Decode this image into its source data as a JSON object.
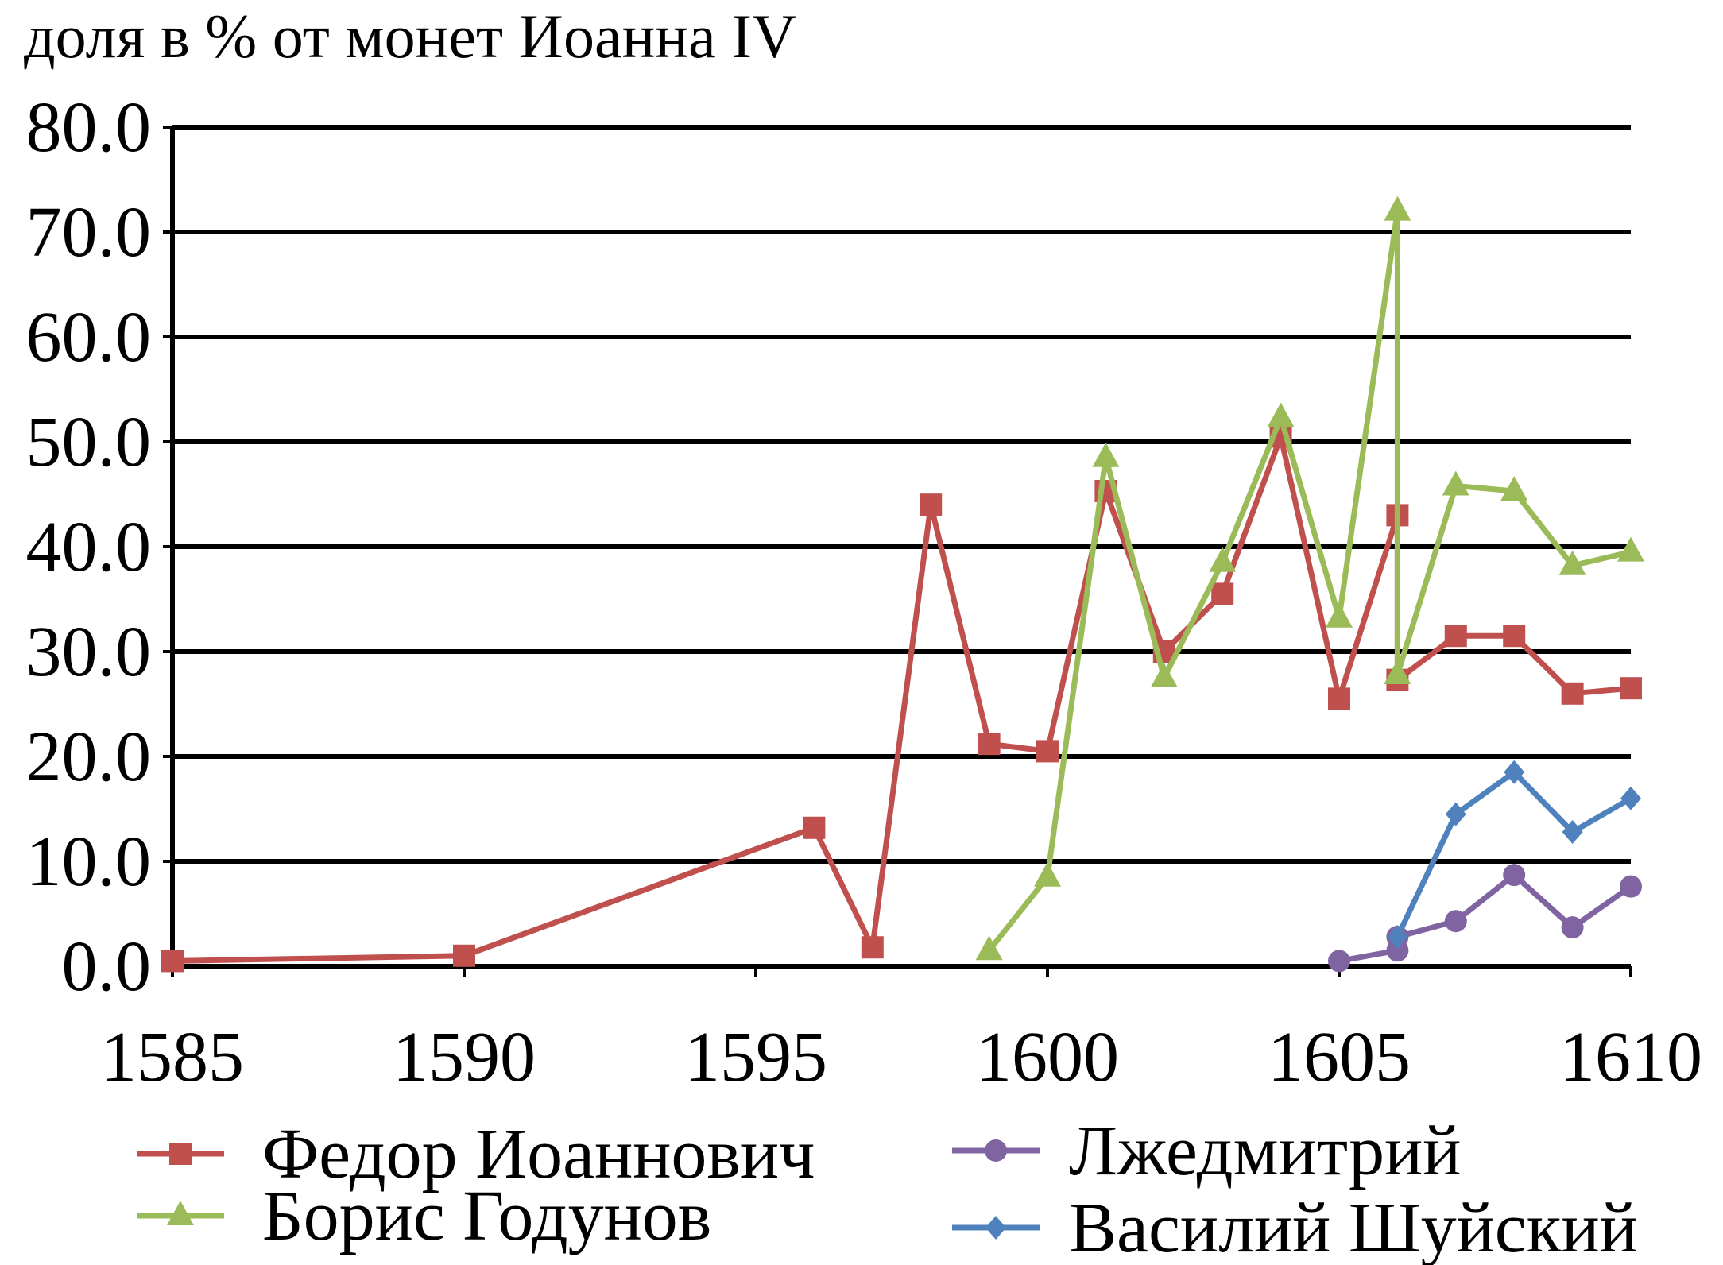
{
  "chart_data": {
    "type": "line",
    "title": "",
    "ylabel": "доля в % от монет Иоанна IV",
    "xlabel": "",
    "xlim": [
      1585,
      1610
    ],
    "ylim": [
      0,
      80
    ],
    "x_ticks": [
      "1585",
      "1590",
      "1595",
      "1600",
      "1605",
      "1610"
    ],
    "y_ticks": [
      "0.0",
      "10.0",
      "20.0",
      "30.0",
      "40.0",
      "50.0",
      "60.0",
      "70.0",
      "80.0"
    ],
    "grid": "horizontal",
    "legend_position": "bottom",
    "series": [
      {
        "name": "Федор Иоаннович",
        "color": "#c0504d",
        "marker": "square",
        "points": [
          [
            1585,
            0.5
          ],
          [
            1590,
            1.0
          ],
          [
            1596,
            13.2
          ],
          [
            1597,
            1.8
          ],
          [
            1598,
            44.0
          ],
          [
            1599,
            21.2
          ],
          [
            1600,
            20.5
          ],
          [
            1601,
            45.3
          ],
          [
            1602,
            30.0
          ],
          [
            1603,
            35.5
          ],
          [
            1604,
            50.5
          ],
          [
            1605,
            25.5
          ],
          [
            1606,
            43.0
          ],
          [
            1606,
            27.3
          ],
          [
            1607,
            31.5
          ],
          [
            1608,
            31.5
          ],
          [
            1609,
            26.0
          ],
          [
            1610,
            26.5
          ]
        ]
      },
      {
        "name": "Борис Годунов",
        "color": "#9bbb59",
        "marker": "triangle",
        "points": [
          [
            1599,
            1.5
          ],
          [
            1600,
            8.5
          ],
          [
            1601,
            48.5
          ],
          [
            1602,
            27.5
          ],
          [
            1603,
            38.5
          ],
          [
            1604,
            52.3
          ],
          [
            1605,
            33.2
          ],
          [
            1606,
            72.0
          ],
          [
            1606,
            27.8
          ],
          [
            1607,
            45.8
          ],
          [
            1608,
            45.3
          ],
          [
            1609,
            38.2
          ],
          [
            1610,
            39.5
          ]
        ]
      },
      {
        "name": "Лжедмитрий",
        "color": "#8064a2",
        "marker": "circle",
        "points": [
          [
            1605,
            0.5
          ],
          [
            1606,
            1.5
          ],
          [
            1606,
            2.8
          ],
          [
            1607,
            4.3
          ],
          [
            1608,
            8.7
          ],
          [
            1609,
            3.7
          ],
          [
            1610,
            7.6
          ]
        ]
      },
      {
        "name": "Василий Шуйский",
        "color": "#4f81bd",
        "marker": "diamond",
        "points": [
          [
            1606,
            2.8
          ],
          [
            1607,
            14.5
          ],
          [
            1608,
            18.5
          ],
          [
            1609,
            12.8
          ],
          [
            1610,
            16.0
          ]
        ]
      }
    ],
    "legend": {
      "columns": [
        [
          "Федор Иоаннович",
          "Борис Годунов"
        ],
        [
          "Лжедмитрий",
          "Василий Шуйский"
        ]
      ]
    }
  }
}
